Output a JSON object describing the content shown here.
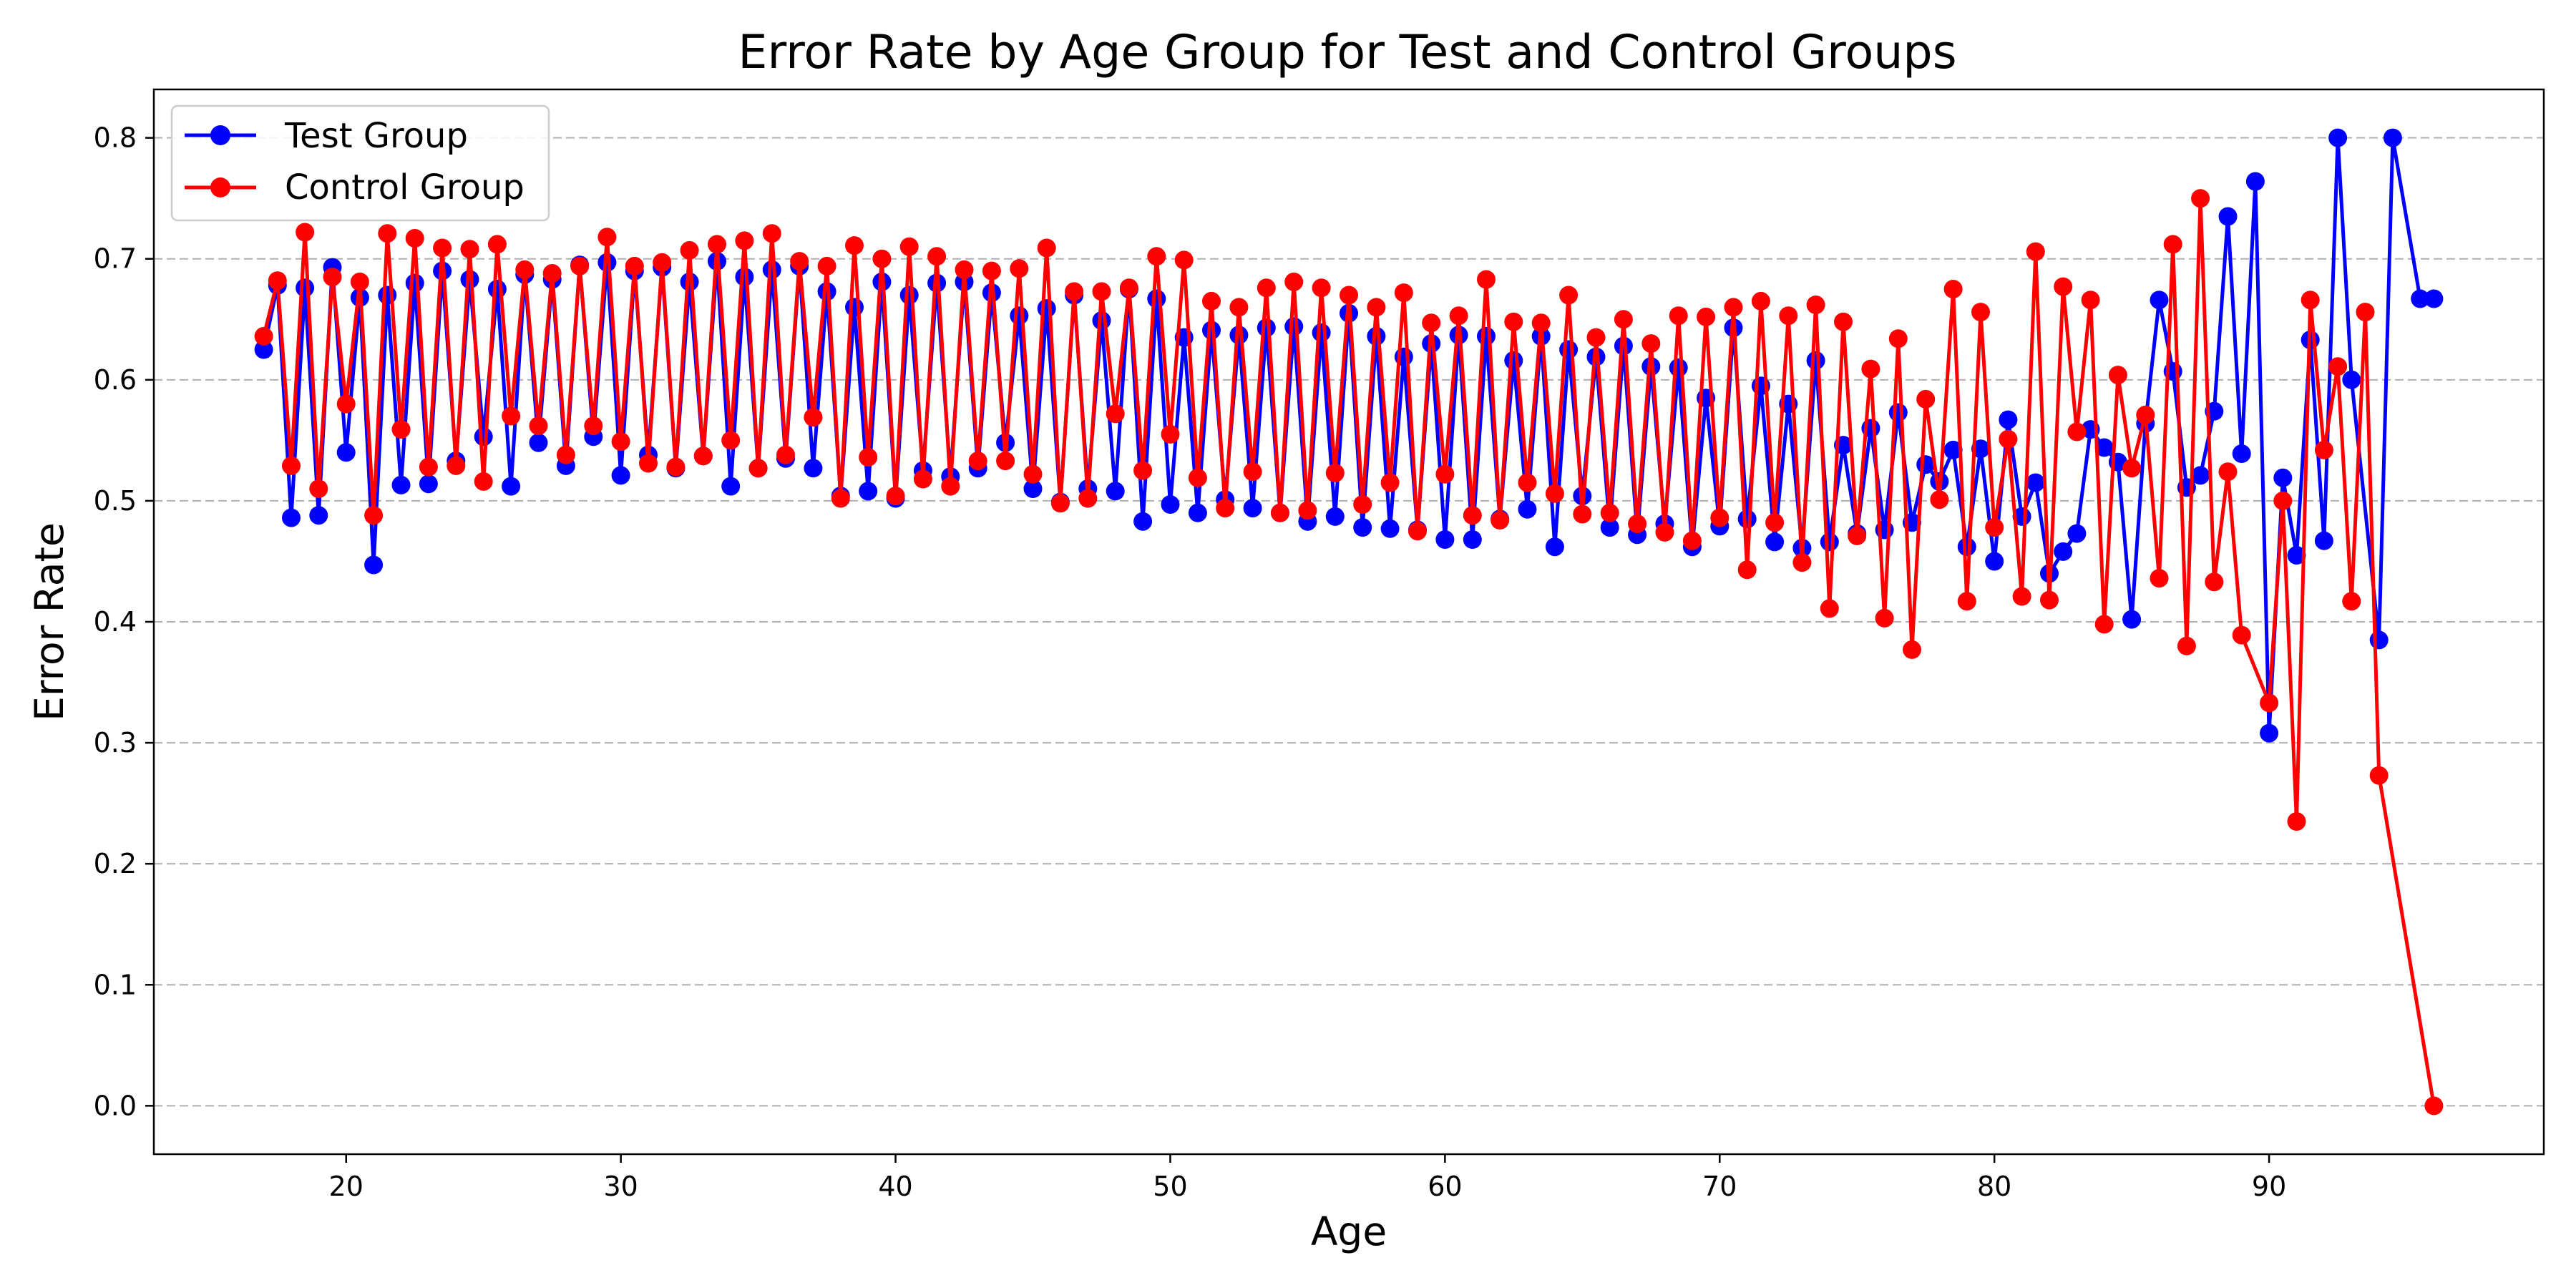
{
  "chart_data": {
    "type": "line",
    "title": "Error Rate by Age Group for Test and Control Groups",
    "xlabel": "Age",
    "ylabel": "Error Rate",
    "xlim": [
      13,
      100
    ],
    "ylim": [
      -0.04,
      0.84
    ],
    "xticks": [
      20,
      30,
      40,
      50,
      60,
      70,
      80,
      90
    ],
    "yticks": [
      0.0,
      0.1,
      0.2,
      0.3,
      0.4,
      0.5,
      0.6,
      0.7,
      0.8
    ],
    "ytick_labels": [
      "0.0",
      "0.1",
      "0.2",
      "0.3",
      "0.4",
      "0.5",
      "0.6",
      "0.7",
      "0.8"
    ],
    "grid": "y-dashed",
    "legend_position": "top-left",
    "series": [
      {
        "name": "Test Group",
        "color": "#0000ff",
        "x": [
          17,
          17.5,
          18,
          18.5,
          19,
          19.5,
          20,
          20.5,
          21,
          21.5,
          22,
          22.5,
          23,
          23.5,
          24,
          24.5,
          25,
          25.5,
          26,
          26.5,
          27,
          27.5,
          28,
          28.5,
          29,
          29.5,
          30,
          30.5,
          31,
          31.5,
          32,
          32.5,
          33,
          33.5,
          34,
          34.5,
          35,
          35.5,
          36,
          36.5,
          37,
          37.5,
          38,
          38.5,
          39,
          39.5,
          40,
          40.5,
          41,
          41.5,
          42,
          42.5,
          43,
          43.5,
          44,
          44.5,
          45,
          45.5,
          46,
          46.5,
          47,
          47.5,
          48,
          48.5,
          49,
          49.5,
          50,
          50.5,
          51,
          51.5,
          52,
          52.5,
          53,
          53.5,
          54,
          54.5,
          55,
          55.5,
          56,
          56.5,
          57,
          57.5,
          58,
          58.5,
          59,
          59.5,
          60,
          60.5,
          61,
          61.5,
          62,
          62.5,
          63,
          63.5,
          64,
          64.5,
          65,
          65.5,
          66,
          66.5,
          67,
          67.5,
          68,
          68.5,
          69,
          69.5,
          70,
          70.5,
          71,
          71.5,
          72,
          72.5,
          73,
          73.5,
          74,
          74.5,
          75,
          75.5,
          76,
          76.5,
          77,
          77.5,
          78,
          78.5,
          79,
          79.5,
          80,
          80.5,
          81,
          81.5,
          82,
          82.5,
          83,
          83.5,
          84,
          84.5,
          85,
          85.5,
          86,
          86.5,
          87,
          87.5,
          88,
          88.5,
          89,
          89.5,
          90,
          90.5,
          91,
          91.5,
          92,
          92.5,
          93,
          93.5,
          94,
          94.5,
          95,
          95.5,
          96
        ],
        "values": [
          0.625,
          0.678,
          0.486,
          0.676,
          0.488,
          0.693,
          0.54,
          0.668,
          0.447,
          0.67,
          0.513,
          0.68,
          0.514,
          0.69,
          0.533,
          0.683,
          0.553,
          0.675,
          0.512,
          0.687,
          0.548,
          0.683,
          0.529,
          0.695,
          0.553,
          0.697,
          0.521,
          0.69,
          0.538,
          0.693,
          0.527,
          0.681,
          0.537,
          0.698,
          0.512,
          0.685,
          0.527,
          0.691,
          0.535,
          0.694,
          0.527,
          0.673,
          0.504,
          0.66,
          0.508,
          0.681,
          0.502,
          0.67,
          0.525,
          0.68,
          0.52,
          0.681,
          0.527,
          0.672,
          0.548,
          0.653,
          0.51,
          0.659,
          0.499,
          0.67,
          0.51,
          0.649,
          0.508,
          0.675,
          0.483,
          0.667,
          0.497,
          0.635,
          0.49,
          0.641,
          0.501,
          0.637,
          0.494,
          0.643,
          0.49,
          0.644,
          0.483,
          0.639,
          0.487,
          0.655,
          0.478,
          0.636,
          0.477,
          0.619,
          0.476,
          0.63,
          0.468,
          0.637,
          0.468,
          0.636,
          0.485,
          0.616,
          0.493,
          0.636,
          0.462,
          0.625,
          0.504,
          0.619,
          0.478,
          0.628,
          0.472,
          0.611,
          0.481,
          0.61,
          0.462,
          0.585,
          0.479,
          0.643,
          0.485,
          0.595,
          0.466,
          0.58,
          0.461,
          0.616,
          0.466,
          0.546,
          0.473,
          0.56,
          0.476,
          0.573,
          0.482,
          0.53,
          0.516,
          0.542,
          0.462,
          0.543,
          0.45,
          0.567,
          0.487,
          0.515,
          0.44,
          0.458,
          0.473,
          0.559,
          0.544,
          0.532,
          0.402,
          0.564,
          0.666,
          0.607,
          0.511,
          0.521,
          0.574,
          0.735,
          0.539,
          0.764,
          0.308,
          0.519,
          0.455,
          0.633,
          0.467,
          0.8,
          0.6,
          null,
          0.385,
          0.8,
          null,
          0.667,
          0.667
        ]
      },
      {
        "name": "Control Group",
        "color": "#ff0000",
        "x": [
          17,
          17.5,
          18,
          18.5,
          19,
          19.5,
          20,
          20.5,
          21,
          21.5,
          22,
          22.5,
          23,
          23.5,
          24,
          24.5,
          25,
          25.5,
          26,
          26.5,
          27,
          27.5,
          28,
          28.5,
          29,
          29.5,
          30,
          30.5,
          31,
          31.5,
          32,
          32.5,
          33,
          33.5,
          34,
          34.5,
          35,
          35.5,
          36,
          36.5,
          37,
          37.5,
          38,
          38.5,
          39,
          39.5,
          40,
          40.5,
          41,
          41.5,
          42,
          42.5,
          43,
          43.5,
          44,
          44.5,
          45,
          45.5,
          46,
          46.5,
          47,
          47.5,
          48,
          48.5,
          49,
          49.5,
          50,
          50.5,
          51,
          51.5,
          52,
          52.5,
          53,
          53.5,
          54,
          54.5,
          55,
          55.5,
          56,
          56.5,
          57,
          57.5,
          58,
          58.5,
          59,
          59.5,
          60,
          60.5,
          61,
          61.5,
          62,
          62.5,
          63,
          63.5,
          64,
          64.5,
          65,
          65.5,
          66,
          66.5,
          67,
          67.5,
          68,
          68.5,
          69,
          69.5,
          70,
          70.5,
          71,
          71.5,
          72,
          72.5,
          73,
          73.5,
          74,
          74.5,
          75,
          75.5,
          76,
          76.5,
          77,
          77.5,
          78,
          78.5,
          79,
          79.5,
          80,
          80.5,
          81,
          81.5,
          82,
          82.5,
          83,
          83.5,
          84,
          84.5,
          85,
          85.5,
          86,
          86.5,
          87,
          87.5,
          88,
          88.5,
          89,
          89.5,
          90,
          90.5,
          91,
          91.5,
          92,
          92.5,
          93,
          93.5,
          94,
          94.5,
          95,
          95.5,
          96
        ],
        "values": [
          0.636,
          0.682,
          0.529,
          0.722,
          0.51,
          0.685,
          0.58,
          0.681,
          0.488,
          0.721,
          0.559,
          0.717,
          0.528,
          0.709,
          0.529,
          0.708,
          0.516,
          0.712,
          0.57,
          0.691,
          0.562,
          0.688,
          0.538,
          0.694,
          0.562,
          0.718,
          0.549,
          0.694,
          0.531,
          0.697,
          0.528,
          0.707,
          0.537,
          0.712,
          0.55,
          0.715,
          0.527,
          0.721,
          0.538,
          0.698,
          0.569,
          0.694,
          0.502,
          0.711,
          0.536,
          0.7,
          0.504,
          0.71,
          0.518,
          0.702,
          0.512,
          0.691,
          0.533,
          0.69,
          0.533,
          0.692,
          0.522,
          0.709,
          0.498,
          0.673,
          0.502,
          0.673,
          0.572,
          0.676,
          0.525,
          0.702,
          0.555,
          0.699,
          0.519,
          0.665,
          0.494,
          0.66,
          0.524,
          0.676,
          0.49,
          0.681,
          0.492,
          0.676,
          0.523,
          0.67,
          0.497,
          0.66,
          0.515,
          0.672,
          0.475,
          0.647,
          0.522,
          0.653,
          0.488,
          0.683,
          0.484,
          0.648,
          0.515,
          0.647,
          0.506,
          0.67,
          0.489,
          0.635,
          0.49,
          0.65,
          0.481,
          0.63,
          0.474,
          0.653,
          0.467,
          0.652,
          0.486,
          0.66,
          0.443,
          0.665,
          0.482,
          0.653,
          0.449,
          0.662,
          0.411,
          0.648,
          0.471,
          0.609,
          0.403,
          0.634,
          0.377,
          0.584,
          0.501,
          0.675,
          0.417,
          0.656,
          0.478,
          0.551,
          0.421,
          0.706,
          0.418,
          0.677,
          0.557,
          0.666,
          0.398,
          0.604,
          0.527,
          0.571,
          0.436,
          0.712,
          0.38,
          0.75,
          0.433,
          0.524,
          0.389,
          null,
          0.333,
          0.5,
          0.235,
          0.666,
          0.542,
          0.611,
          0.417,
          0.656,
          0.273,
          null,
          null,
          null,
          0.0
        ]
      }
    ]
  }
}
